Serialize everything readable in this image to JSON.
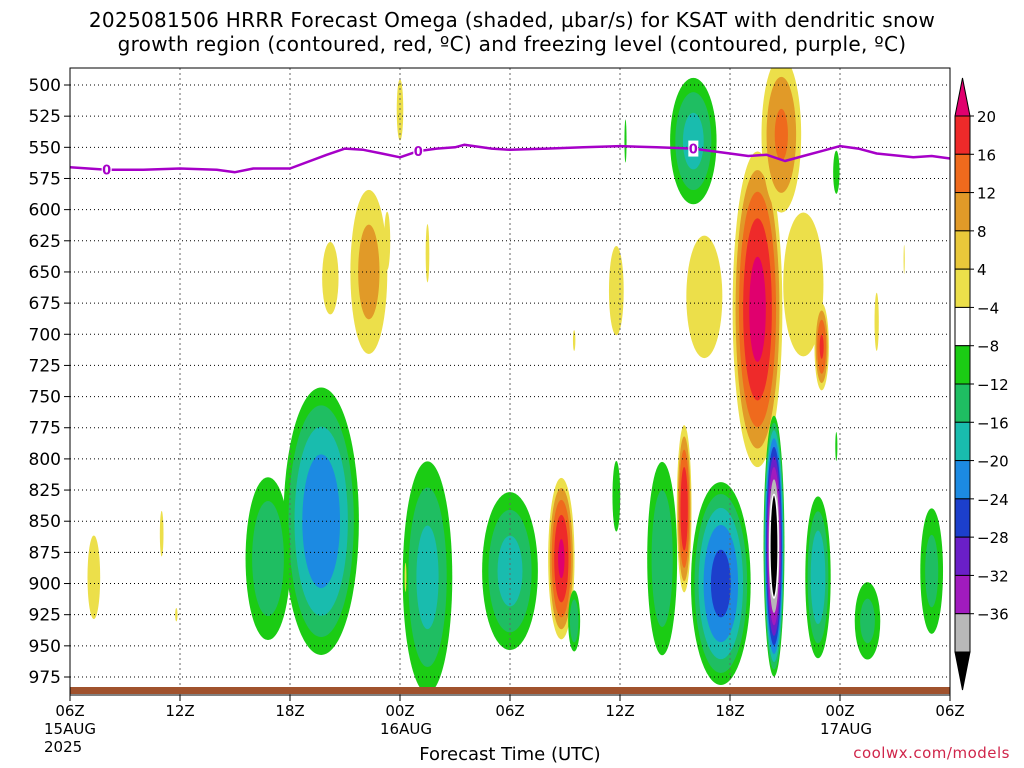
{
  "title": {
    "line1": "2025081506 HRRR Forecast Omega (shaded, µbar/s) for KSAT with dendritic snow",
    "line2": "growth region (contoured, red, ºC) and freezing level (contoured, purple, ºC)"
  },
  "xlabel": "Forecast Time (UTC)",
  "credit": "coolwx.com/models",
  "chart_data": {
    "type": "heatmap",
    "title": "2025081506 HRRR Forecast Omega (shaded, µbar/s) for KSAT with dendritic snow growth region (contoured, red, ºC) and freezing level (contoured, purple, ºC)",
    "xlabel": "Forecast Time (UTC)",
    "ylabel": "",
    "x_range_hours": [
      0,
      48
    ],
    "x_ticks": [
      {
        "hour": 0,
        "label": "06Z",
        "sub1": "15AUG",
        "sub2": "2025"
      },
      {
        "hour": 6,
        "label": "12Z",
        "sub1": "",
        "sub2": ""
      },
      {
        "hour": 12,
        "label": "18Z",
        "sub1": "",
        "sub2": ""
      },
      {
        "hour": 18,
        "label": "00Z",
        "sub1": "16AUG",
        "sub2": ""
      },
      {
        "hour": 24,
        "label": "06Z",
        "sub1": "",
        "sub2": ""
      },
      {
        "hour": 30,
        "label": "12Z",
        "sub1": "",
        "sub2": ""
      },
      {
        "hour": 36,
        "label": "18Z",
        "sub1": "",
        "sub2": ""
      },
      {
        "hour": 42,
        "label": "00Z",
        "sub1": "17AUG",
        "sub2": ""
      },
      {
        "hour": 48,
        "label": "06Z",
        "sub1": "",
        "sub2": ""
      }
    ],
    "y_ticks": [
      500,
      525,
      550,
      575,
      600,
      625,
      650,
      675,
      700,
      725,
      750,
      775,
      800,
      825,
      850,
      875,
      900,
      925,
      950,
      975
    ],
    "y_range_hpa": [
      495,
      990
    ],
    "grid": true,
    "colorbar": {
      "labels": [
        "20",
        "16",
        "12",
        "8",
        "4",
        "−4",
        "−8",
        "−12",
        "−16",
        "−20",
        "−24",
        "−28",
        "−32",
        "−36"
      ],
      "colors": [
        "#e0006e",
        "#ee2a2a",
        "#ef6a1d",
        "#e19a28",
        "#e9c83a",
        "#ecdf4a",
        "#ffffff",
        "#1bcc14",
        "#1fbe62",
        "#19bcae",
        "#1c8ae2",
        "#1c3fcc",
        "#6a1fc8",
        "#a11bbe",
        "#b8b8b8",
        "#000000"
      ]
    },
    "freezing_level": {
      "color": "#a600c8",
      "label": "0",
      "points": [
        [
          0,
          566
        ],
        [
          2,
          568
        ],
        [
          4,
          568
        ],
        [
          6,
          567
        ],
        [
          8,
          568
        ],
        [
          9,
          570
        ],
        [
          10,
          567
        ],
        [
          12,
          567
        ],
        [
          14,
          556
        ],
        [
          15,
          551
        ],
        [
          16,
          552
        ],
        [
          17,
          555
        ],
        [
          18,
          558
        ],
        [
          19,
          553
        ],
        [
          20,
          551
        ],
        [
          21,
          550
        ],
        [
          21.5,
          548
        ],
        [
          23,
          551
        ],
        [
          24,
          552
        ],
        [
          26,
          551
        ],
        [
          28,
          550
        ],
        [
          30,
          549
        ],
        [
          32,
          550
        ],
        [
          34,
          551
        ],
        [
          36,
          555
        ],
        [
          37,
          557
        ],
        [
          38,
          556
        ],
        [
          39,
          561
        ],
        [
          40,
          557
        ],
        [
          41,
          553
        ],
        [
          42,
          549
        ],
        [
          43,
          551
        ],
        [
          44,
          555
        ],
        [
          46,
          558
        ],
        [
          47,
          557
        ],
        [
          48,
          559
        ]
      ],
      "label_hours": [
        2,
        19,
        34
      ]
    },
    "features": [
      {
        "sign": "up",
        "hour": 1.3,
        "p": 895,
        "dh": 0.6,
        "dp": 58,
        "peak": 6
      },
      {
        "sign": "up",
        "hour": 5.0,
        "p": 860,
        "dh": 0.3,
        "dp": 55,
        "peak": 4.5
      },
      {
        "sign": "up",
        "hour": 5.8,
        "p": 925,
        "dh": 0.2,
        "dp": 16,
        "peak": 4.5
      },
      {
        "sign": "up",
        "hour": 14.2,
        "p": 655,
        "dh": 1.0,
        "dp": 65,
        "peak": 5
      },
      {
        "sign": "up",
        "hour": 16.3,
        "p": 650,
        "dh": 1.3,
        "dp": 85,
        "peak": 10
      },
      {
        "sign": "up",
        "hour": 17.3,
        "p": 625,
        "dh": 0.5,
        "dp": 70,
        "peak": 4.5
      },
      {
        "sign": "down",
        "hour": 13.7,
        "p": 850,
        "dh": 2.3,
        "dp": 120,
        "peak": 20
      },
      {
        "sign": "down",
        "hour": 10.8,
        "p": 880,
        "dh": 1.5,
        "dp": 80,
        "peak": 12
      },
      {
        "sign": "up",
        "hour": 18.0,
        "p": 520,
        "dh": 0.4,
        "dp": 55,
        "peak": 5
      },
      {
        "sign": "up",
        "hour": 19.5,
        "p": 635,
        "dh": 0.3,
        "dp": 70,
        "peak": 4.5
      },
      {
        "sign": "down",
        "hour": 19.5,
        "p": 895,
        "dh": 1.6,
        "dp": 110,
        "peak": 14
      },
      {
        "sign": "up",
        "hour": 18.3,
        "p": 895,
        "dh": 0.15,
        "dp": 35,
        "peak": 4.5
      },
      {
        "sign": "down",
        "hour": 24.0,
        "p": 890,
        "dh": 1.8,
        "dp": 75,
        "peak": 14
      },
      {
        "sign": "up",
        "hour": 26.8,
        "p": 880,
        "dh": 0.8,
        "dp": 72,
        "peak": 21
      },
      {
        "sign": "down",
        "hour": 27.5,
        "p": 930,
        "dh": 0.4,
        "dp": 30,
        "peak": 12
      },
      {
        "sign": "up",
        "hour": 27.5,
        "p": 705,
        "dh": 0.2,
        "dp": 25,
        "peak": 4.5
      },
      {
        "sign": "down",
        "hour": 29.8,
        "p": 830,
        "dh": 0.3,
        "dp": 40,
        "peak": 8
      },
      {
        "sign": "up",
        "hour": 29.8,
        "p": 665,
        "dh": 0.9,
        "dp": 80,
        "peak": 5
      },
      {
        "sign": "down",
        "hour": 32.3,
        "p": 880,
        "dh": 1.0,
        "dp": 95,
        "peak": 12
      },
      {
        "sign": "down",
        "hour": 30.3,
        "p": 545,
        "dh": 0.1,
        "dp": 30,
        "peak": 6
      },
      {
        "sign": "down",
        "hour": 34.0,
        "p": 545,
        "dh": 1.5,
        "dp": 60,
        "peak": 14
      },
      {
        "sign": "up",
        "hour": 34.6,
        "p": 670,
        "dh": 1.5,
        "dp": 75,
        "peak": 7
      },
      {
        "sign": "up",
        "hour": 33.5,
        "p": 840,
        "dh": 0.45,
        "dp": 75,
        "peak": 20
      },
      {
        "sign": "down",
        "hour": 35.5,
        "p": 900,
        "dh": 1.8,
        "dp": 90,
        "peak": 22
      },
      {
        "sign": "up",
        "hour": 37.5,
        "p": 680,
        "dh": 1.5,
        "dp": 140,
        "peak": 22
      },
      {
        "sign": "up",
        "hour": 38.8,
        "p": 540,
        "dh": 1.3,
        "dp": 75,
        "peak": 13
      },
      {
        "sign": "up",
        "hour": 40.0,
        "p": 660,
        "dh": 1.9,
        "dp": 100,
        "peak": 6
      },
      {
        "sign": "up",
        "hour": 41.0,
        "p": 710,
        "dh": 0.45,
        "dp": 40,
        "peak": 17
      },
      {
        "sign": "down",
        "hour": 38.4,
        "p": 870,
        "dh": 0.6,
        "dp": 110,
        "peak": 42
      },
      {
        "sign": "down",
        "hour": 40.8,
        "p": 895,
        "dh": 0.8,
        "dp": 75,
        "peak": 16
      },
      {
        "sign": "down",
        "hour": 41.8,
        "p": 570,
        "dh": 0.3,
        "dp": 30,
        "peak": 6
      },
      {
        "sign": "up",
        "hour": 44.0,
        "p": 690,
        "dh": 0.35,
        "dp": 70,
        "peak": 4.5
      },
      {
        "sign": "up",
        "hour": 45.5,
        "p": 640,
        "dh": 0.1,
        "dp": 35,
        "peak": 4.5
      },
      {
        "sign": "down",
        "hour": 43.5,
        "p": 930,
        "dh": 0.9,
        "dp": 40,
        "peak": 10
      },
      {
        "sign": "down",
        "hour": 47.0,
        "p": 890,
        "dh": 0.8,
        "dp": 65,
        "peak": 10
      },
      {
        "sign": "down",
        "hour": 41.8,
        "p": 790,
        "dh": 0.1,
        "dp": 20,
        "peak": 6
      }
    ]
  }
}
